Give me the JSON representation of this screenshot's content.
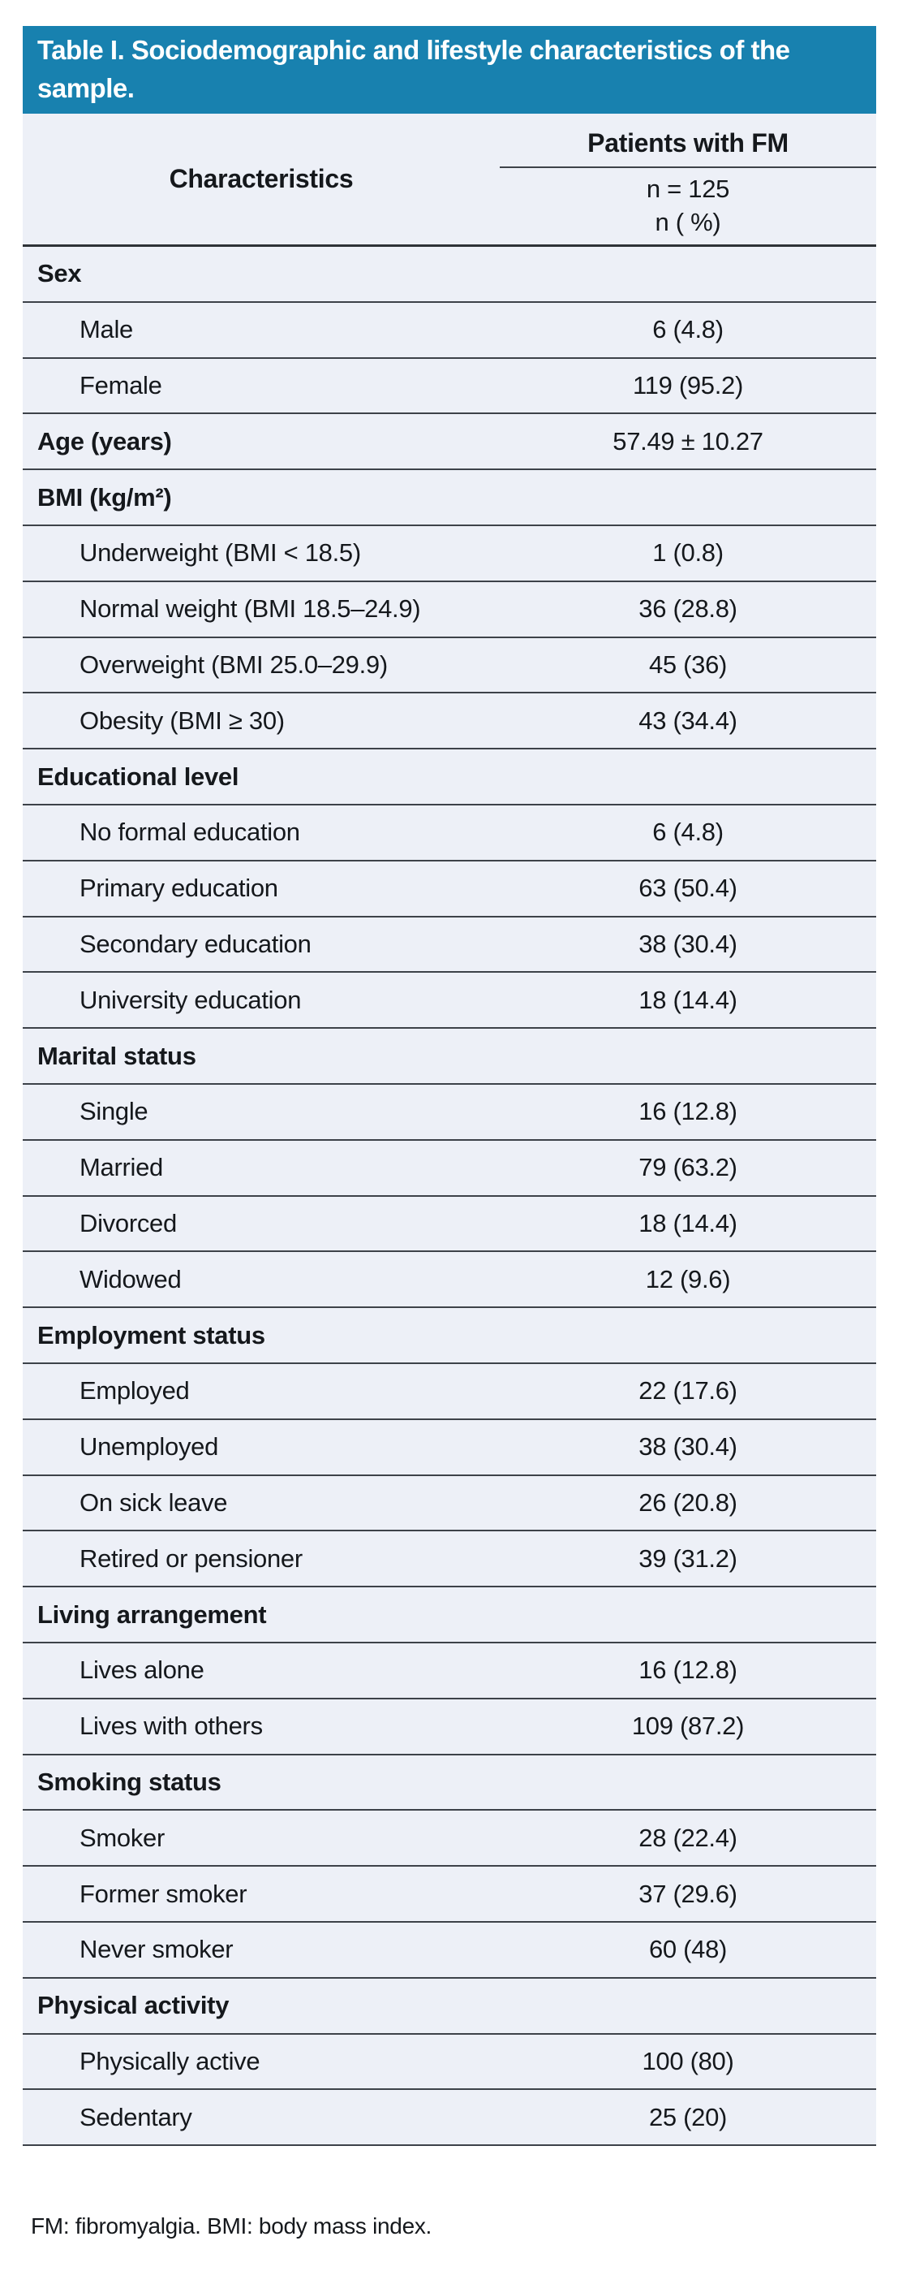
{
  "title": "Table I. Sociodemographic and lifestyle characteristics of the sample.",
  "header": {
    "characteristics_label": "Characteristics",
    "group_label": "Patients with FM",
    "subheader_line1": "n = 125",
    "subheader_line2": "n ( %)"
  },
  "rows": [
    {
      "type": "section",
      "label": "Sex",
      "value": ""
    },
    {
      "type": "item",
      "label": "Male",
      "value": "6 (4.8)"
    },
    {
      "type": "item",
      "label": "Female",
      "value": "119 (95.2)"
    },
    {
      "type": "section",
      "label": "Age (years)",
      "value": "57.49 ± 10.27"
    },
    {
      "type": "section",
      "label": "BMI (kg/m²)",
      "value": ""
    },
    {
      "type": "item",
      "label": "Underweight (BMI < 18.5)",
      "value": "1 (0.8)"
    },
    {
      "type": "item",
      "label": "Normal weight (BMI 18.5–24.9)",
      "value": "36 (28.8)"
    },
    {
      "type": "item",
      "label": "Overweight (BMI 25.0–29.9)",
      "value": "45 (36)"
    },
    {
      "type": "item",
      "label": "Obesity (BMI ≥ 30)",
      "value": "43 (34.4)"
    },
    {
      "type": "section",
      "label": "Educational level",
      "value": ""
    },
    {
      "type": "item",
      "label": "No formal education",
      "value": "6 (4.8)"
    },
    {
      "type": "item",
      "label": "Primary education",
      "value": "63 (50.4)"
    },
    {
      "type": "item",
      "label": "Secondary education",
      "value": "38 (30.4)"
    },
    {
      "type": "item",
      "label": "University education",
      "value": "18 (14.4)"
    },
    {
      "type": "section",
      "label": "Marital status",
      "value": ""
    },
    {
      "type": "item",
      "label": "Single",
      "value": "16 (12.8)"
    },
    {
      "type": "item",
      "label": "Married",
      "value": "79 (63.2)"
    },
    {
      "type": "item",
      "label": "Divorced",
      "value": "18 (14.4)"
    },
    {
      "type": "item",
      "label": "Widowed",
      "value": "12 (9.6)"
    },
    {
      "type": "section",
      "label": "Employment status",
      "value": ""
    },
    {
      "type": "item",
      "label": "Employed",
      "value": "22 (17.6)"
    },
    {
      "type": "item",
      "label": "Unemployed",
      "value": "38 (30.4)"
    },
    {
      "type": "item",
      "label": "On sick leave",
      "value": "26 (20.8)"
    },
    {
      "type": "item",
      "label": "Retired or pensioner",
      "value": "39 (31.2)"
    },
    {
      "type": "section",
      "label": "Living arrangement",
      "value": ""
    },
    {
      "type": "item",
      "label": "Lives alone",
      "value": "16 (12.8)"
    },
    {
      "type": "item",
      "label": "Lives with others",
      "value": "109 (87.2)"
    },
    {
      "type": "section",
      "label": "Smoking status",
      "value": ""
    },
    {
      "type": "item",
      "label": "Smoker",
      "value": "28 (22.4)"
    },
    {
      "type": "item",
      "label": "Former smoker",
      "value": "37 (29.6)"
    },
    {
      "type": "item",
      "label": "Never smoker",
      "value": "60 (48)"
    },
    {
      "type": "section",
      "label": "Physical activity",
      "value": ""
    },
    {
      "type": "item",
      "label": "Physically active",
      "value": "100 (80)"
    },
    {
      "type": "item",
      "label": "Sedentary",
      "value": "25 (20)"
    }
  ],
  "footnote": "FM: fibromyalgia. BMI: body mass index.",
  "colors": {
    "title_bar_bg": "#1881af",
    "row_bg": "#edf0f7",
    "border": "#3d4249",
    "border_strong": "#2e3237",
    "title_text": "#ffffff",
    "body_text": "#15181c"
  }
}
